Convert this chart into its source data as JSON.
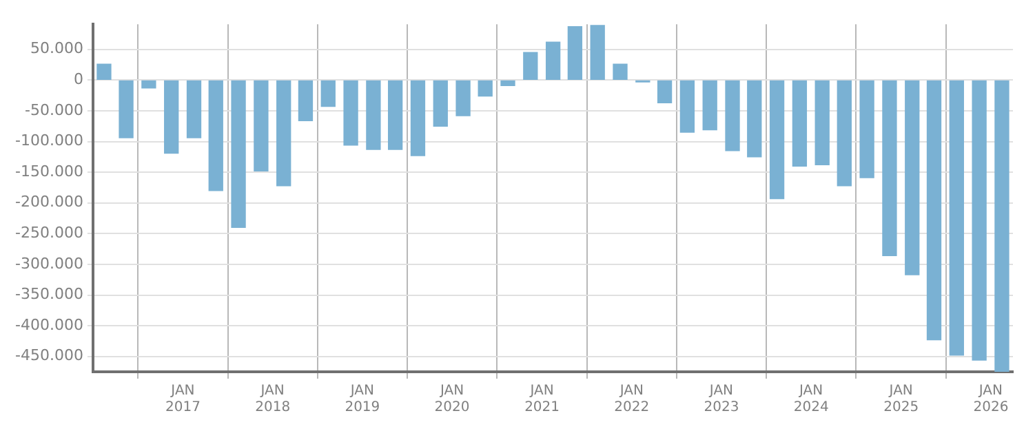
{
  "chart_data": {
    "type": "bar",
    "x": [
      "2016-02-15",
      "2016-05-15",
      "2016-08-15",
      "2016-11-15",
      "2017-02-15",
      "2017-05-15",
      "2017-08-15",
      "2017-11-15",
      "2018-02-15",
      "2018-05-15",
      "2018-08-15",
      "2018-11-15",
      "2019-02-15",
      "2019-05-15",
      "2019-08-15",
      "2019-11-15",
      "2020-02-15",
      "2020-05-15",
      "2020-08-15",
      "2020-11-15",
      "2021-02-15",
      "2021-05-15",
      "2021-08-15",
      "2021-11-15",
      "2022-02-15",
      "2022-05-15",
      "2022-08-15",
      "2022-11-15",
      "2023-02-15",
      "2023-05-15",
      "2023-08-15",
      "2023-11-15",
      "2024-02-15",
      "2024-05-15",
      "2024-08-15",
      "2024-11-15",
      "2025-02-15",
      "2025-05-15",
      "2025-08-15",
      "2025-11-15",
      "2026-02-15"
    ],
    "values": [
      26000,
      -94000,
      -13000,
      -119000,
      -94000,
      -180000,
      -240000,
      -148000,
      -172000,
      -66000,
      -43000,
      -106000,
      -113000,
      -113000,
      -123000,
      -75000,
      -58000,
      -26000,
      -9000,
      45000,
      62000,
      87000,
      89000,
      26000,
      -3000,
      -37000,
      -85000,
      -81000,
      -115000,
      -125000,
      -193000,
      -140000,
      -138000,
      -172000,
      -159000,
      -286000,
      -317000,
      -423000,
      -448000,
      -456000,
      -475000
    ],
    "color": "#7ab1d3",
    "xlim": [
      "2016-01-01",
      "2026-04-01"
    ],
    "xticks": [
      {
        "value": "2017-01-01",
        "label": "JAN 2017"
      },
      {
        "value": "2018-01-01",
        "label": "JAN 2018"
      },
      {
        "value": "2019-01-01",
        "label": "JAN 2019"
      },
      {
        "value": "2020-01-01",
        "label": "JAN 2020"
      },
      {
        "value": "2021-01-01",
        "label": "JAN 2021"
      },
      {
        "value": "2022-01-01",
        "label": "JAN 2022"
      },
      {
        "value": "2023-01-01",
        "label": "JAN 2023"
      },
      {
        "value": "2024-01-01",
        "label": "JAN 2024"
      },
      {
        "value": "2025-01-01",
        "label": "JAN 2025"
      },
      {
        "value": "2026-01-01",
        "label": "JAN 2026"
      }
    ],
    "ylim": [
      -475000,
      91000
    ],
    "yticks": [
      {
        "value": 50000,
        "label": "50.000"
      },
      0,
      {
        "value": -50000,
        "label": "-50.000"
      },
      {
        "value": -100000,
        "label": "-100.000"
      },
      {
        "value": -150000,
        "label": "-150.000"
      },
      {
        "value": -200000,
        "label": "-200.000"
      },
      {
        "value": -250000,
        "label": "-250.000"
      },
      {
        "value": -300000,
        "label": "-300.000"
      },
      {
        "value": -350000,
        "label": "-350.000"
      },
      {
        "value": -400000,
        "label": "-400.000"
      },
      {
        "value": -450000,
        "label": "-450.000"
      }
    ],
    "grid": true,
    "legend": false
  }
}
